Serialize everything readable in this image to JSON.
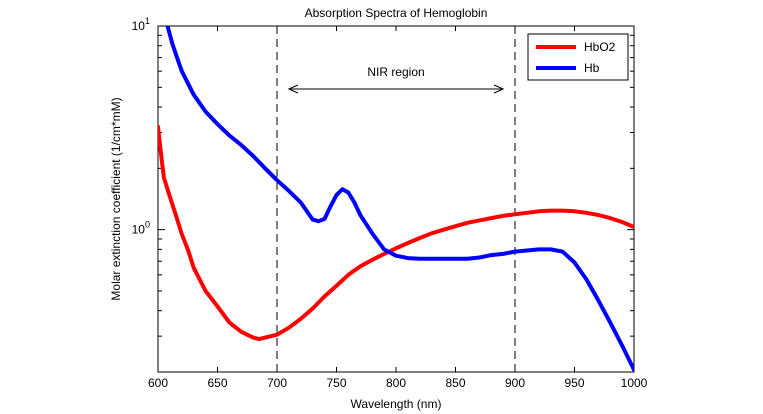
{
  "chart_data": {
    "type": "line",
    "title": "Absorption Spectra of Hemoglobin",
    "xlabel": "Wavelength (nm)",
    "ylabel": "Molar extinction coefficient (1/cm*mM)",
    "xlim": [
      600,
      1000
    ],
    "ylim": [
      0.2,
      10
    ],
    "yscale": "log",
    "x_ticks": [
      "600",
      "650",
      "700",
      "750",
      "800",
      "850",
      "900",
      "950",
      "1000"
    ],
    "x_tick_values": [
      600,
      650,
      700,
      750,
      800,
      850,
      900,
      950,
      1000
    ],
    "y_ticks": [
      {
        "value": 1,
        "base": "10",
        "exp": "0"
      },
      {
        "value": 10,
        "base": "10",
        "exp": "1"
      }
    ],
    "legend_position": "top-right",
    "grid": false,
    "series": [
      {
        "name": "HbO2",
        "color": "#ff0000",
        "x": [
          600,
          602,
          605,
          610,
          615,
          620,
          625,
          630,
          640,
          650,
          660,
          670,
          680,
          685,
          690,
          700,
          710,
          720,
          730,
          740,
          750,
          760,
          770,
          780,
          790,
          800,
          810,
          820,
          830,
          840,
          850,
          860,
          870,
          880,
          890,
          900,
          910,
          920,
          930,
          940,
          950,
          960,
          970,
          980,
          990,
          1000
        ],
        "y": [
          3.2,
          2.5,
          1.8,
          1.45,
          1.18,
          0.95,
          0.8,
          0.65,
          0.5,
          0.42,
          0.35,
          0.315,
          0.295,
          0.29,
          0.295,
          0.305,
          0.33,
          0.365,
          0.41,
          0.47,
          0.53,
          0.6,
          0.66,
          0.71,
          0.76,
          0.81,
          0.86,
          0.91,
          0.96,
          1.0,
          1.04,
          1.08,
          1.11,
          1.14,
          1.17,
          1.19,
          1.21,
          1.23,
          1.24,
          1.24,
          1.23,
          1.21,
          1.18,
          1.14,
          1.09,
          1.03
        ]
      },
      {
        "name": "Hb",
        "color": "#0000ff",
        "x": [
          608,
          612,
          616,
          620,
          630,
          640,
          650,
          660,
          670,
          680,
          690,
          700,
          710,
          720,
          730,
          735,
          740,
          745,
          750,
          755,
          760,
          765,
          770,
          780,
          790,
          800,
          810,
          820,
          830,
          840,
          850,
          860,
          870,
          880,
          890,
          900,
          910,
          920,
          930,
          940,
          950,
          960,
          970,
          980,
          990,
          1000
        ],
        "y": [
          10,
          8.2,
          7.0,
          6.0,
          4.6,
          3.8,
          3.3,
          2.9,
          2.6,
          2.3,
          2.0,
          1.75,
          1.55,
          1.36,
          1.12,
          1.1,
          1.13,
          1.3,
          1.48,
          1.58,
          1.52,
          1.36,
          1.18,
          0.96,
          0.8,
          0.745,
          0.725,
          0.72,
          0.72,
          0.72,
          0.72,
          0.72,
          0.73,
          0.75,
          0.76,
          0.78,
          0.79,
          0.8,
          0.8,
          0.78,
          0.69,
          0.57,
          0.45,
          0.35,
          0.27,
          0.205
        ]
      }
    ],
    "annotation": {
      "text": "NIR region",
      "x_start": 700,
      "x_end": 900,
      "arrow_from": 710,
      "arrow_to": 890
    }
  }
}
